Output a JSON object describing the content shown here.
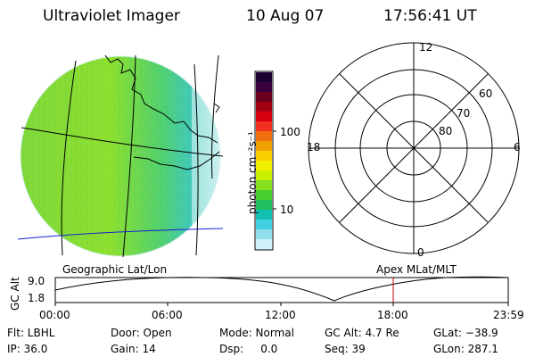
{
  "header": {
    "title": "Ultraviolet Imager",
    "date": "10 Aug 07",
    "time": "17:56:41 UT"
  },
  "colorbar": {
    "unit_label": "photon cm⁻²s⁻¹",
    "ticks": [
      "100",
      "10"
    ],
    "colors": [
      "#1a0030",
      "#3a0040",
      "#6a0020",
      "#a00010",
      "#d80010",
      "#f03020",
      "#f07010",
      "#f0a000",
      "#f8d000",
      "#f0f000",
      "#c8f000",
      "#88e020",
      "#48d030",
      "#20c060",
      "#10c0b0",
      "#40d0e0",
      "#90e0f0",
      "#d0f0f8"
    ]
  },
  "geo_map": {
    "label": "Geographic Lat/Lon"
  },
  "polar": {
    "label": "Apex MLat/MLT",
    "mlt_labels": {
      "top": "12",
      "left": "18",
      "right": "6",
      "bottom": "0"
    },
    "lat_labels": [
      "60",
      "70",
      "80"
    ]
  },
  "altitude_plot": {
    "ylabel": "GC Alt",
    "yticks": [
      "9.0",
      "1.8"
    ],
    "xticks": [
      "00:00",
      "06:00",
      "12:00",
      "18:00",
      "23:59"
    ],
    "marker_time": "17:56:41"
  },
  "footer": {
    "filter": "Flt: LBHL",
    "ip": "IP: 36.0",
    "door": "Door: Open",
    "gain": "Gain: 14",
    "mode": "Mode: Normal",
    "dsp": "Dsp:     0.0",
    "gc_alt": "GC Alt: 4.7 Re",
    "seq": "Seq: 39",
    "glat": "GLat: −38.9",
    "glon": "GLon: 287.1"
  }
}
